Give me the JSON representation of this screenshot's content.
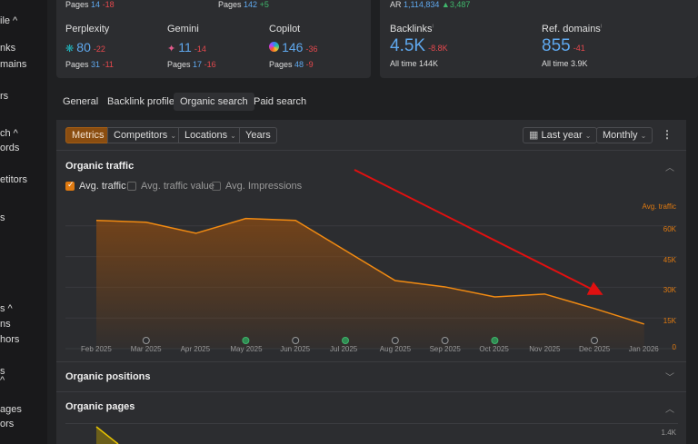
{
  "sidebar": {
    "items": [
      "ile ^",
      "nks",
      "mains",
      "rs",
      "ch ^",
      "ords",
      "etitors",
      "s",
      "s ^",
      "ns",
      "hors",
      "s",
      "^",
      "ages",
      "ors"
    ]
  },
  "top_left": {
    "row0": [
      {
        "pages_label": "Pages",
        "pages": "14",
        "change": "-18"
      },
      {
        "pages_label": "Pages",
        "pages": "142",
        "change": "+5"
      }
    ],
    "engines": [
      {
        "name": "Perplexity",
        "icon": "perplexity-icon",
        "value": "80",
        "change": "-22",
        "pages_label": "Pages",
        "pages": "31",
        "pages_change": "-11"
      },
      {
        "name": "Gemini",
        "icon": "gemini-icon",
        "value": "11",
        "change": "-14",
        "pages_label": "Pages",
        "pages": "17",
        "pages_change": "-16"
      },
      {
        "name": "Copilot",
        "icon": "copilot-icon",
        "value": "146",
        "change": "-36",
        "pages_label": "Pages",
        "pages": "48",
        "pages_change": "-9"
      }
    ]
  },
  "top_right": {
    "ar_label": "AR",
    "ar_value": "1,114,834",
    "ar_change": "▲3,487",
    "backlinks": {
      "label": "Backlinks",
      "value": "4.5K",
      "change": "-8.8K",
      "alltime_label": "All time",
      "alltime": "144K"
    },
    "refdomains": {
      "label": "Ref. domains",
      "value": "855",
      "change": "-41",
      "alltime_label": "All time",
      "alltime": "3.9K"
    }
  },
  "tabs": [
    {
      "label": "General"
    },
    {
      "label": "Backlink profile"
    },
    {
      "label": "Organic search",
      "active": true
    },
    {
      "label": "Paid search"
    }
  ],
  "toolbar": {
    "metrics": "Metrics",
    "competitors": "Competitors",
    "locations": "Locations",
    "years": "Years",
    "period": "Last year",
    "interval": "Monthly"
  },
  "organic_traffic": {
    "title": "Organic traffic",
    "checkboxes": [
      {
        "label": "Avg. traffic",
        "checked": true
      },
      {
        "label": "Avg. traffic value",
        "checked": false
      },
      {
        "label": "Avg. Impressions",
        "checked": false
      }
    ]
  },
  "chart_data": {
    "type": "area",
    "ylabel": "Avg. traffic",
    "categories": [
      "Feb 2025",
      "Mar 2025",
      "Apr 2025",
      "May 2025",
      "Jun 2025",
      "Jul 2025",
      "Aug 2025",
      "Sep 2025",
      "Oct 2025",
      "Nov 2025",
      "Dec 2025",
      "Jan 2026"
    ],
    "values": [
      62700,
      61800,
      56400,
      63600,
      62700,
      48000,
      33300,
      30200,
      25300,
      26700,
      19600,
      12000
    ],
    "yticks": [
      "0",
      "15K",
      "30K",
      "45K",
      "60K"
    ],
    "ylim": [
      0,
      75000
    ],
    "grid": true,
    "color": "#f08a12",
    "markers": [
      {
        "month": "Mar 2025",
        "kind": "google"
      },
      {
        "month": "May 2025",
        "kind": "green"
      },
      {
        "month": "Jun 2025",
        "kind": "google"
      },
      {
        "month": "Jul 2025",
        "kind": "green"
      },
      {
        "month": "Aug 2025",
        "kind": "google"
      },
      {
        "month": "Sep 2025",
        "kind": "google"
      },
      {
        "month": "Oct 2025",
        "kind": "green"
      },
      {
        "month": "Dec 2025",
        "kind": "google"
      }
    ],
    "annotation": {
      "type": "arrow",
      "color": "#e01010",
      "direction": "down-right"
    }
  },
  "organic_positions": {
    "title": "Organic positions"
  },
  "organic_pages": {
    "title": "Organic pages",
    "ytick": "1.4K"
  }
}
